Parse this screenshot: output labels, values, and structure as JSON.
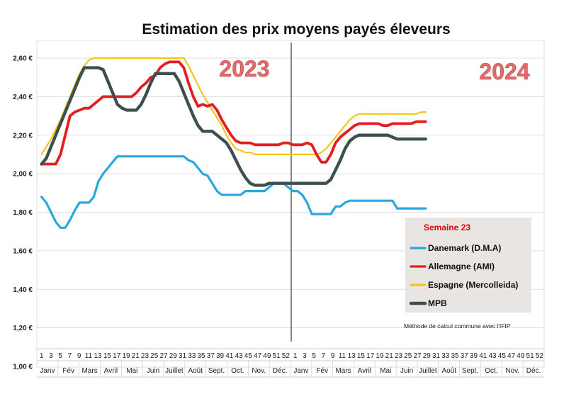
{
  "chart_data": {
    "type": "line",
    "title": "Estimation des prix moyens payés éleveurs",
    "ylim": [
      1.0,
      2.6
    ],
    "yticks": [
      "1,00 €",
      "1,20 €",
      "1,40 €",
      "1,60 €",
      "1,80 €",
      "2,00 €",
      "2,20 €",
      "2,40 €",
      "2,60 €"
    ],
    "ytick_values": [
      1.0,
      1.2,
      1.4,
      1.6,
      1.8,
      2.0,
      2.2,
      2.4,
      2.6
    ],
    "xtick_labels": [
      "1",
      "3",
      "5",
      "7",
      "9",
      "11",
      "13",
      "15",
      "17",
      "19",
      "21",
      "23",
      "25",
      "27",
      "29",
      "31",
      "33",
      "35",
      "37",
      "39",
      "41",
      "43",
      "45",
      "47",
      "49",
      "51",
      "52",
      "1",
      "3",
      "5",
      "7",
      "9",
      "11",
      "13",
      "15",
      "17",
      "19",
      "21",
      "23",
      "25",
      "27",
      "29",
      "31",
      "33",
      "35",
      "37",
      "39",
      "41",
      "43",
      "45",
      "47",
      "49",
      "51",
      "52"
    ],
    "months": [
      "Janv",
      "Fév",
      "Mars",
      "Avril",
      "Mai",
      "Juin",
      "Juillet",
      "Août",
      "Sept.",
      "Oct.",
      "Nov.",
      "Déc.",
      "Janv",
      "Fév",
      "Mars",
      "Avril",
      "Mai",
      "Juin",
      "Juillet",
      "Août",
      "Sept.",
      "Oct.",
      "Nov.",
      "Déc."
    ],
    "year_labels": [
      "2023",
      "2024"
    ],
    "legend": {
      "title": "Semaine 23",
      "placement": "right"
    },
    "note": "Méthode de calcul commune avec l'IFIP",
    "series": [
      {
        "name": "Danemark (D.M.A)",
        "color": "#29a8e0",
        "x": [
          1,
          2,
          3,
          4,
          5,
          6,
          7,
          8,
          9,
          10,
          11,
          12,
          13,
          14,
          15,
          16,
          17,
          18,
          19,
          20,
          21,
          22,
          23,
          24,
          25,
          26,
          27,
          28,
          29,
          30,
          31,
          32,
          33,
          34,
          35,
          36,
          37,
          38,
          39,
          40,
          41,
          42,
          43,
          44,
          45,
          46,
          47,
          48,
          49,
          50,
          51,
          52,
          53,
          54,
          55,
          56,
          57,
          58,
          59,
          60,
          61,
          62,
          63,
          64,
          65,
          66,
          67,
          68,
          69,
          70,
          71,
          72,
          73,
          74,
          75,
          76,
          77,
          78,
          79,
          80,
          81,
          82
        ],
        "y": [
          1.88,
          1.85,
          1.8,
          1.75,
          1.72,
          1.72,
          1.76,
          1.81,
          1.85,
          1.85,
          1.85,
          1.88,
          1.96,
          2.0,
          2.03,
          2.06,
          2.09,
          2.09,
          2.09,
          2.09,
          2.09,
          2.09,
          2.09,
          2.09,
          2.09,
          2.09,
          2.09,
          2.09,
          2.09,
          2.09,
          2.09,
          2.07,
          2.06,
          2.03,
          2.0,
          1.99,
          1.95,
          1.91,
          1.89,
          1.89,
          1.89,
          1.89,
          1.89,
          1.91,
          1.91,
          1.91,
          1.91,
          1.91,
          1.93,
          1.95,
          1.95,
          1.95,
          1.93,
          1.91,
          1.91,
          1.89,
          1.85,
          1.79,
          1.79,
          1.79,
          1.79,
          1.79,
          1.83,
          1.83,
          1.85,
          1.86,
          1.86,
          1.86,
          1.86,
          1.86,
          1.86,
          1.86,
          1.86,
          1.86,
          1.86,
          1.82,
          1.82,
          1.82,
          1.82,
          1.82,
          1.82,
          1.82
        ]
      },
      {
        "name": "Allemagne (AMI)",
        "color": "#e41e1e",
        "x": [
          1,
          2,
          3,
          4,
          5,
          6,
          7,
          8,
          9,
          10,
          11,
          12,
          13,
          14,
          15,
          16,
          17,
          18,
          19,
          20,
          21,
          22,
          23,
          24,
          25,
          26,
          27,
          28,
          29,
          30,
          31,
          32,
          33,
          34,
          35,
          36,
          37,
          38,
          39,
          40,
          41,
          42,
          43,
          44,
          45,
          46,
          47,
          48,
          49,
          50,
          51,
          52,
          53,
          54,
          55,
          56,
          57,
          58,
          59,
          60,
          61,
          62,
          63,
          64,
          65,
          66,
          67,
          68,
          69,
          70,
          71,
          72,
          73,
          74,
          75,
          76,
          77,
          78,
          79,
          80,
          81,
          82
        ],
        "y": [
          2.05,
          2.05,
          2.05,
          2.05,
          2.1,
          2.2,
          2.3,
          2.32,
          2.33,
          2.34,
          2.34,
          2.36,
          2.38,
          2.4,
          2.4,
          2.4,
          2.4,
          2.4,
          2.4,
          2.4,
          2.42,
          2.45,
          2.47,
          2.5,
          2.51,
          2.55,
          2.57,
          2.58,
          2.58,
          2.58,
          2.55,
          2.47,
          2.4,
          2.35,
          2.36,
          2.35,
          2.36,
          2.33,
          2.28,
          2.24,
          2.2,
          2.17,
          2.16,
          2.16,
          2.16,
          2.15,
          2.15,
          2.15,
          2.15,
          2.15,
          2.15,
          2.16,
          2.16,
          2.15,
          2.15,
          2.15,
          2.16,
          2.15,
          2.1,
          2.06,
          2.06,
          2.1,
          2.16,
          2.19,
          2.21,
          2.23,
          2.25,
          2.26,
          2.26,
          2.26,
          2.26,
          2.26,
          2.25,
          2.25,
          2.26,
          2.26,
          2.26,
          2.26,
          2.26,
          2.27,
          2.27,
          2.27
        ]
      },
      {
        "name": "Espagne (Mercolleida)",
        "color": "#f5c518",
        "x": [
          1,
          2,
          3,
          4,
          5,
          6,
          7,
          8,
          9,
          10,
          11,
          12,
          13,
          14,
          15,
          16,
          17,
          18,
          19,
          20,
          21,
          22,
          23,
          24,
          25,
          26,
          27,
          28,
          29,
          30,
          31,
          32,
          33,
          34,
          35,
          36,
          37,
          38,
          39,
          40,
          41,
          42,
          43,
          44,
          45,
          46,
          47,
          48,
          49,
          50,
          51,
          52,
          53,
          54,
          55,
          56,
          57,
          58,
          59,
          60,
          61,
          62,
          63,
          64,
          65,
          66,
          67,
          68,
          69,
          70,
          71,
          72,
          73,
          74,
          75,
          76,
          77,
          78,
          79,
          80,
          81,
          82
        ],
        "y": [
          2.1,
          2.14,
          2.18,
          2.23,
          2.28,
          2.34,
          2.4,
          2.46,
          2.52,
          2.56,
          2.59,
          2.6,
          2.6,
          2.6,
          2.6,
          2.6,
          2.6,
          2.6,
          2.6,
          2.6,
          2.6,
          2.6,
          2.6,
          2.6,
          2.6,
          2.6,
          2.6,
          2.6,
          2.6,
          2.6,
          2.6,
          2.56,
          2.51,
          2.46,
          2.41,
          2.37,
          2.33,
          2.29,
          2.25,
          2.2,
          2.16,
          2.13,
          2.12,
          2.11,
          2.11,
          2.1,
          2.1,
          2.1,
          2.1,
          2.1,
          2.1,
          2.1,
          2.1,
          2.1,
          2.1,
          2.1,
          2.1,
          2.1,
          2.1,
          2.11,
          2.13,
          2.16,
          2.19,
          2.22,
          2.25,
          2.28,
          2.3,
          2.31,
          2.31,
          2.31,
          2.31,
          2.31,
          2.31,
          2.31,
          2.31,
          2.31,
          2.31,
          2.31,
          2.31,
          2.31,
          2.32,
          2.32
        ]
      },
      {
        "name": "MPB",
        "color": "#3d4f4f",
        "x": [
          1,
          2,
          3,
          4,
          5,
          6,
          7,
          8,
          9,
          10,
          11,
          12,
          13,
          14,
          15,
          16,
          17,
          18,
          19,
          20,
          21,
          22,
          23,
          24,
          25,
          26,
          27,
          28,
          29,
          30,
          31,
          32,
          33,
          34,
          35,
          36,
          37,
          38,
          39,
          40,
          41,
          42,
          43,
          44,
          45,
          46,
          47,
          48,
          49,
          50,
          51,
          52,
          53,
          54,
          55,
          56,
          57,
          58,
          59,
          60,
          61,
          62,
          63,
          64,
          65,
          66,
          67,
          68,
          69,
          70,
          71,
          72,
          73,
          74,
          75,
          76,
          77,
          78,
          79,
          80,
          81,
          82
        ],
        "y": [
          2.05,
          2.08,
          2.14,
          2.2,
          2.26,
          2.32,
          2.38,
          2.44,
          2.5,
          2.55,
          2.55,
          2.55,
          2.55,
          2.54,
          2.48,
          2.42,
          2.36,
          2.34,
          2.33,
          2.33,
          2.33,
          2.36,
          2.41,
          2.47,
          2.52,
          2.52,
          2.52,
          2.52,
          2.52,
          2.48,
          2.42,
          2.36,
          2.3,
          2.25,
          2.22,
          2.22,
          2.22,
          2.2,
          2.18,
          2.16,
          2.12,
          2.07,
          2.02,
          1.98,
          1.95,
          1.94,
          1.94,
          1.94,
          1.95,
          1.95,
          1.95,
          1.95,
          1.95,
          1.95,
          1.95,
          1.95,
          1.95,
          1.95,
          1.95,
          1.95,
          1.95,
          1.97,
          2.02,
          2.07,
          2.13,
          2.17,
          2.19,
          2.2,
          2.2,
          2.2,
          2.2,
          2.2,
          2.2,
          2.2,
          2.19,
          2.18,
          2.18,
          2.18,
          2.18,
          2.18,
          2.18,
          2.18
        ]
      }
    ]
  }
}
